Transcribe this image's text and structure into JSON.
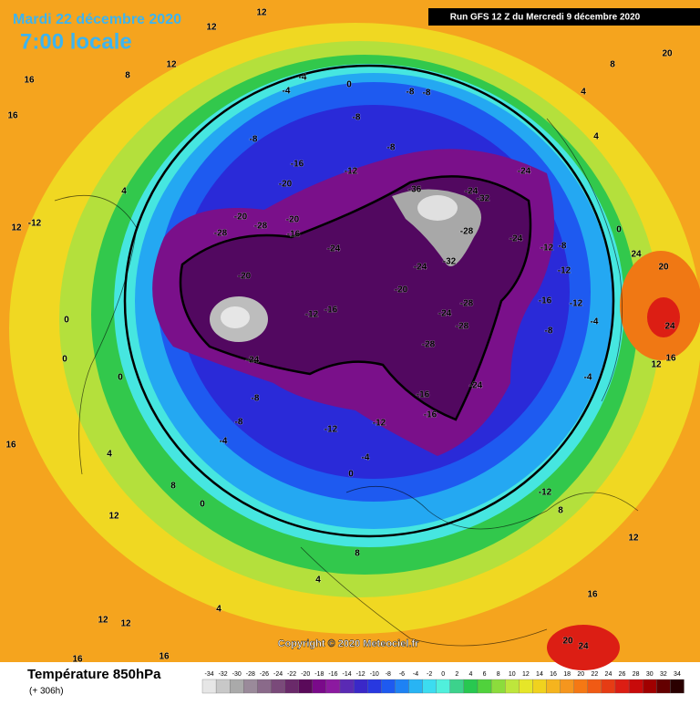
{
  "header": {
    "date": "Mardi 22 décembre 2020",
    "time": "7:00 locale",
    "run": "Run GFS 12 Z du Mercredi 9 décembre 2020"
  },
  "copyright": "Copyright © 2020 Meteociel.fr",
  "legend": {
    "title": "Température 850hPa",
    "lead": "(+ 306h)",
    "ticks": [
      -34,
      -32,
      -30,
      -28,
      -26,
      -24,
      -22,
      -20,
      -18,
      -16,
      -14,
      -12,
      -10,
      -8,
      -6,
      -4,
      -2,
      0,
      2,
      4,
      6,
      8,
      10,
      12,
      14,
      16,
      18,
      20,
      22,
      24,
      26,
      28,
      30,
      32,
      34
    ],
    "colors": [
      "#e6e6e6",
      "#c8c8c8",
      "#aaaaaa",
      "#9a8a9a",
      "#8a6a8a",
      "#7a4a7a",
      "#6a2a6a",
      "#5a0a5a",
      "#7a0a8a",
      "#8c1aa0",
      "#5a2ab4",
      "#3a28c8",
      "#2838e0",
      "#1e5af0",
      "#1e82f4",
      "#28b4f4",
      "#3cdcf0",
      "#50f0dc",
      "#3cd28c",
      "#28c850",
      "#50d23c",
      "#8cdc3c",
      "#bee63c",
      "#e6e628",
      "#f0d21e",
      "#f5b41e",
      "#f5961e",
      "#f57814",
      "#f05a14",
      "#e63c14",
      "#dc1e14",
      "#c80a0a",
      "#a00000",
      "#640000",
      "#2a0000"
    ]
  },
  "map": {
    "labels": [
      12,
      12,
      16,
      8,
      12,
      16,
      20,
      8,
      4,
      -4,
      -4,
      0,
      -8,
      -8,
      -8,
      -8,
      -8,
      -16,
      -12,
      -24,
      -20,
      -36,
      -24,
      -32,
      -20,
      -28,
      -20,
      -16,
      -28,
      -24,
      -28,
      -24,
      -32,
      -24,
      -20,
      -20,
      -16,
      -12,
      -28,
      -24,
      -28,
      -28,
      -24,
      -16,
      -24,
      -16,
      -12,
      -12,
      -8,
      -8,
      -4,
      -4,
      0,
      -12,
      -8,
      -12,
      -16,
      -12,
      -8,
      -4,
      -4,
      0,
      4,
      24,
      20,
      24,
      16,
      12,
      4,
      0,
      0,
      0,
      8,
      0,
      12,
      8,
      4,
      4,
      12,
      12,
      16,
      16,
      16,
      24,
      20,
      12,
      8,
      -12,
      16,
      12,
      -12,
      4
    ]
  }
}
